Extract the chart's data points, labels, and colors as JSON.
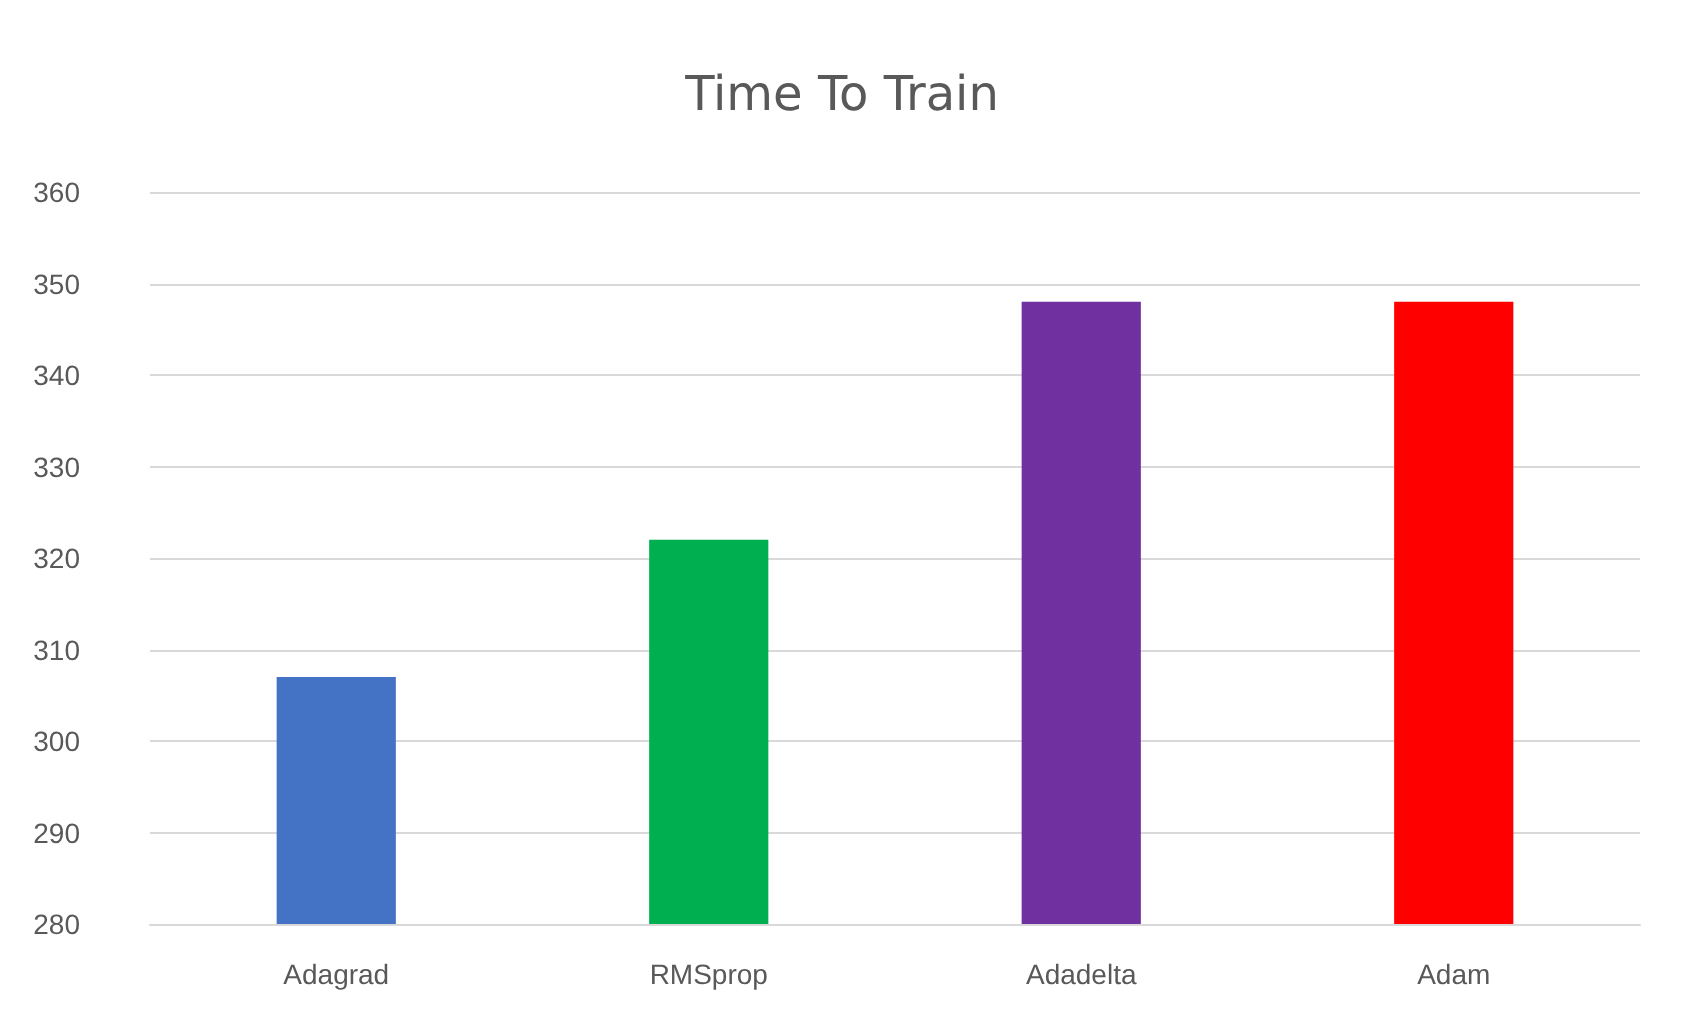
{
  "chart_data": {
    "type": "bar",
    "title": "Time To Train",
    "categories": [
      "Adagrad",
      "RMSprop",
      "Adadelta",
      "Adam"
    ],
    "values": [
      307,
      322,
      348,
      348
    ],
    "colors": [
      "#4472c4",
      "#00b050",
      "#7030a0",
      "#ff0000"
    ],
    "ylim": [
      280,
      360
    ],
    "yticks": [
      280,
      290,
      300,
      310,
      320,
      330,
      340,
      350,
      360
    ],
    "grid": "y"
  }
}
